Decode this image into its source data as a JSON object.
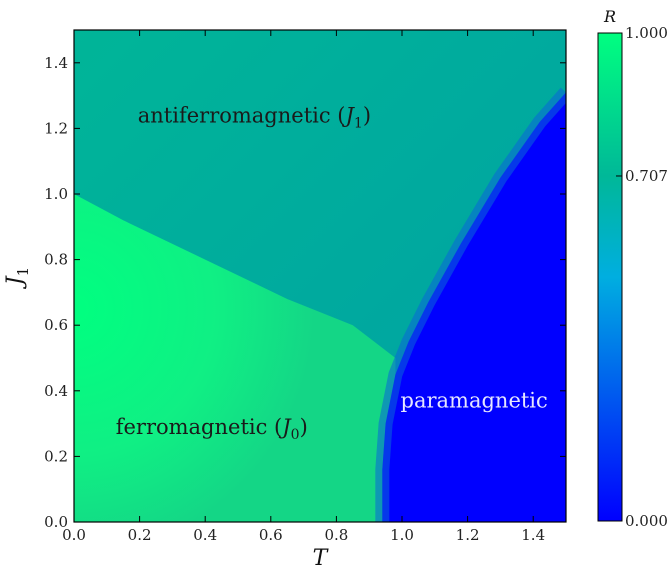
{
  "chart_data": {
    "type": "heatmap",
    "xlabel": "T",
    "ylabel": "J1",
    "xlim": [
      0.0,
      1.5
    ],
    "ylim": [
      0.0,
      1.5
    ],
    "x_ticks": [
      "0.0",
      "0.2",
      "0.4",
      "0.6",
      "0.8",
      "1.0",
      "1.2",
      "1.4"
    ],
    "y_ticks": [
      "0.0",
      "0.2",
      "0.4",
      "0.6",
      "0.8",
      "1.0",
      "1.2",
      "1.4"
    ],
    "colorbar": {
      "title": "R",
      "ticks": [
        "1.000",
        "0.707",
        "0.000"
      ],
      "tick_values": [
        1.0,
        0.707,
        0.0
      ],
      "colormap": "winter",
      "color_min": "#0000ff",
      "color_max": "#00ff80"
    },
    "regions": [
      {
        "label": "antiferromagnetic",
        "subscript_label": "(J1)",
        "at": [
          0.55,
          1.24
        ],
        "color": "#1a1a1a"
      },
      {
        "label": "ferromagnetic",
        "subscript_label": "(J0)",
        "at": [
          0.42,
          0.29
        ],
        "color": "#1a1a1a"
      },
      {
        "label": "paramagnetic",
        "at": [
          1.22,
          0.37
        ],
        "color": "#e6e6ff"
      }
    ],
    "phase_boundary": {
      "description": "transition temperature Tc(J1) separating ordered phases from paramagnetic phase",
      "points": [
        [
          0.94,
          0.0
        ],
        [
          0.94,
          0.16
        ],
        [
          0.95,
          0.3
        ],
        [
          0.98,
          0.45
        ],
        [
          1.02,
          0.55
        ],
        [
          1.08,
          0.67
        ],
        [
          1.18,
          0.85
        ],
        [
          1.3,
          1.05
        ],
        [
          1.42,
          1.22
        ],
        [
          1.5,
          1.31
        ]
      ]
    },
    "grid": false,
    "legend": "none"
  }
}
